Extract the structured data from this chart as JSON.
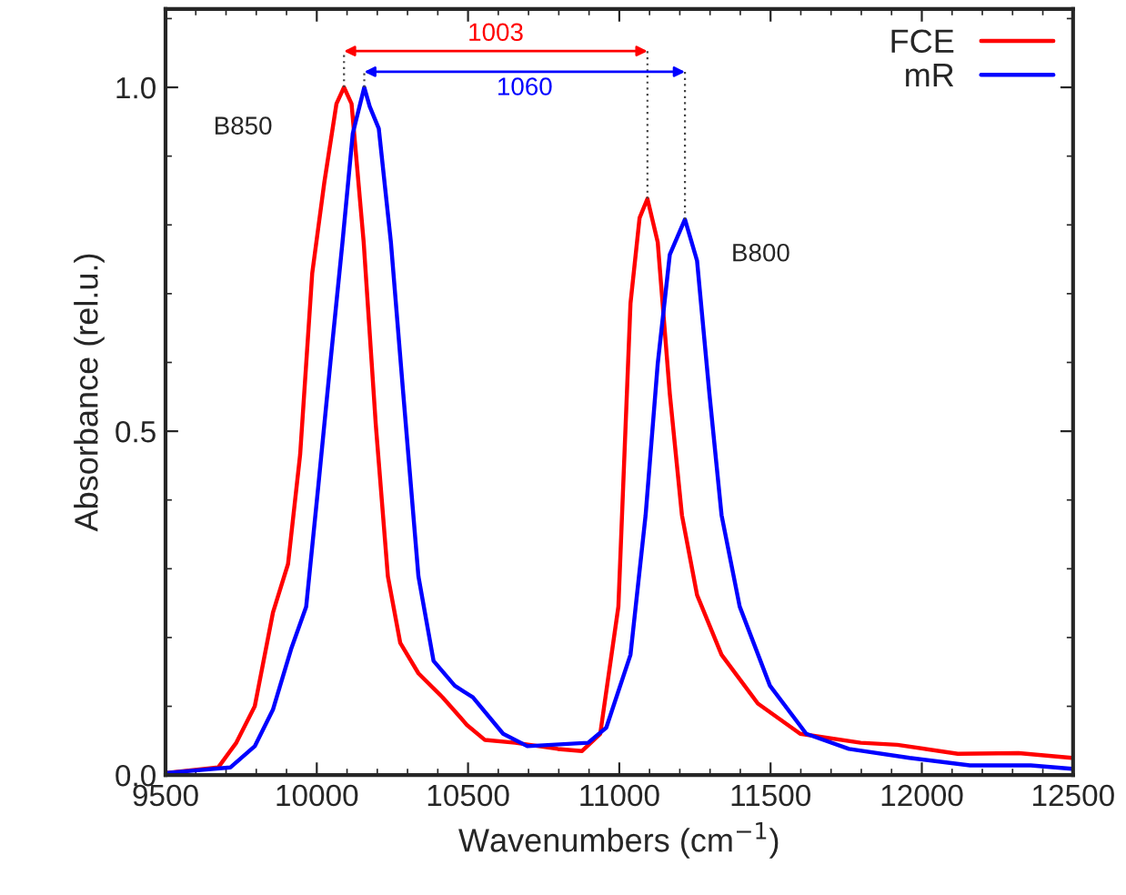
{
  "chart_data": {
    "type": "line",
    "xlabel": "Wavenumbers (cm$^{−1}$)",
    "ylabel": "Absorbance (rel.u.)",
    "xlim": [
      9500,
      12500
    ],
    "xticks": [
      9500,
      10000,
      10500,
      11000,
      11500,
      12000,
      12500
    ],
    "ylim": [
      0,
      1.114
    ],
    "yticks": [
      {
        "value": 0,
        "label": "0.0"
      },
      {
        "value": 0.5,
        "label": "0.5"
      },
      {
        "value": 1.0,
        "label": "1.0"
      }
    ],
    "legend": "top right",
    "grid": false,
    "series": [
      {
        "name": "FCE",
        "color": "#ff0000",
        "x": [
          9500,
          9674,
          9734,
          9795,
          9855,
          9905,
          9945,
          9985,
          10025,
          10065,
          10090,
          10115,
          10155,
          10195,
          10235,
          10276,
          10336,
          10416,
          10496,
          10556,
          10656,
          10797,
          10877,
          10937,
          10997,
          11017,
          11037,
          11067,
          11093,
          11127,
          11167,
          11207,
          11257,
          11338,
          11458,
          11598,
          11798,
          11919,
          12119,
          12320,
          12496
        ],
        "values": [
          0.003,
          0.011,
          0.047,
          0.1,
          0.236,
          0.307,
          0.466,
          0.73,
          0.862,
          0.976,
          1.0,
          0.976,
          0.775,
          0.51,
          0.289,
          0.192,
          0.148,
          0.113,
          0.073,
          0.051,
          0.047,
          0.038,
          0.035,
          0.06,
          0.245,
          0.466,
          0.686,
          0.81,
          0.838,
          0.775,
          0.554,
          0.378,
          0.262,
          0.175,
          0.104,
          0.06,
          0.047,
          0.044,
          0.031,
          0.032,
          0.025
        ]
      },
      {
        "name": "mR",
        "color": "#0000ff",
        "x": [
          9500,
          9714,
          9795,
          9855,
          9915,
          9965,
          10005,
          10045,
          10085,
          10119,
          10157,
          10175,
          10205,
          10245,
          10286,
          10336,
          10386,
          10456,
          10516,
          10616,
          10696,
          10897,
          10957,
          11037,
          11087,
          11127,
          11167,
          11217,
          11257,
          11298,
          11338,
          11398,
          11498,
          11618,
          11759,
          11959,
          12159,
          12360,
          12496
        ],
        "values": [
          0.003,
          0.011,
          0.042,
          0.095,
          0.183,
          0.245,
          0.42,
          0.6,
          0.775,
          0.933,
          1.0,
          0.972,
          0.94,
          0.775,
          0.554,
          0.289,
          0.166,
          0.13,
          0.113,
          0.06,
          0.042,
          0.047,
          0.069,
          0.175,
          0.378,
          0.598,
          0.757,
          0.808,
          0.748,
          0.554,
          0.378,
          0.245,
          0.13,
          0.06,
          0.038,
          0.025,
          0.014,
          0.014,
          0.009
        ]
      }
    ],
    "annotations": [
      "1003",
      "1060",
      "B850",
      "B800"
    ]
  }
}
